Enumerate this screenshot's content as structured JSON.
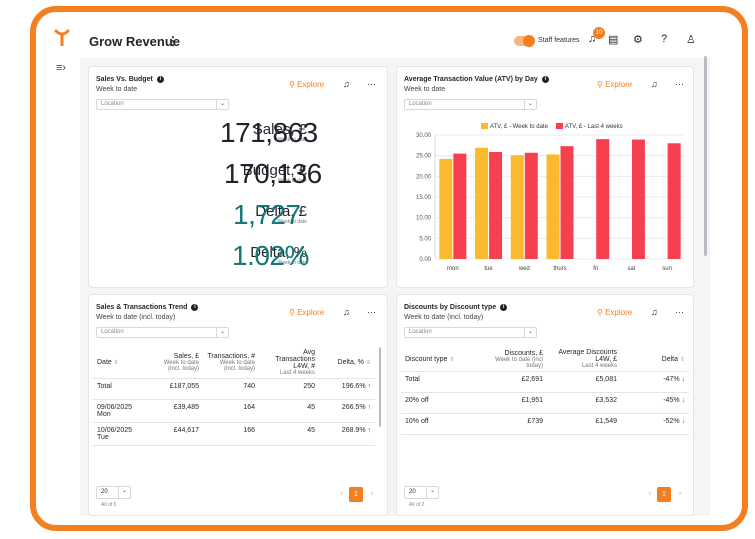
{
  "header": {
    "title": "Grow Revenue",
    "more": "⋮",
    "staff_features": "Staff features",
    "notification_count": "10",
    "help": "?"
  },
  "sales_budget": {
    "title": "Sales Vs. Budget",
    "subtitle": "Week to date",
    "explore": "Explore",
    "location": "Location",
    "kpis": [
      {
        "label": "Sales, £",
        "sub": "Week to date",
        "value": "171,863",
        "teal": false
      },
      {
        "label": "Budget, £",
        "sub": "Week to date",
        "value": "170,136",
        "teal": false
      },
      {
        "label": "Delta, £",
        "sub": "Week to date",
        "value": "1,727",
        "teal": true
      },
      {
        "label": "Delta, %",
        "sub": "Week to date",
        "value": "1.02%",
        "teal": true
      }
    ]
  },
  "atv": {
    "title": "Average Transaction Value (ATV) by Day",
    "subtitle": "Week to date",
    "explore": "Explore",
    "location": "Location"
  },
  "chart_data": {
    "type": "bar",
    "categories": [
      "mon",
      "tue",
      "wed",
      "thurs",
      "fri",
      "sat",
      "sun"
    ],
    "series": [
      {
        "name": "ATV, £ - Week to date",
        "color": "#fbb92e",
        "values": [
          24.2,
          26.9,
          25.1,
          25.3,
          null,
          null,
          null
        ]
      },
      {
        "name": "ATV, £ - Last 4 weeks",
        "color": "#f6404f",
        "values": [
          25.5,
          25.9,
          25.7,
          27.3,
          29.0,
          28.9,
          28.0
        ]
      }
    ],
    "yticks": [
      "0.00",
      "5.00",
      "10.00",
      "15.00",
      "20.00",
      "25.00",
      "30.00"
    ],
    "ylim": [
      0,
      30
    ],
    "legend": "top-center",
    "grid": true
  },
  "trend": {
    "title": "Sales & Transactions Trend",
    "subtitle": "Week to date (incl. today)",
    "explore": "Explore",
    "location": "Location",
    "headers": [
      {
        "label": "Date",
        "sub": ""
      },
      {
        "label": "Sales, £",
        "sub": "Week to date (incl. today)"
      },
      {
        "label": "Transactions, #",
        "sub": "Week to date (incl. today)"
      },
      {
        "label": "Avg Transactions L4W, #",
        "sub": "Last 4 weeks"
      },
      {
        "label": "Delta, %",
        "sub": ""
      }
    ],
    "rows": [
      {
        "date": "Total",
        "day": "",
        "sales": "£187,055",
        "trans": "740",
        "avg": "250",
        "delta": "196.6%"
      },
      {
        "date": "09/06/2025",
        "day": "Mon",
        "sales": "£39,485",
        "trans": "164",
        "avg": "45",
        "delta": "266.5%"
      },
      {
        "date": "10/06/2025",
        "day": "Tue",
        "sales": "£44,617",
        "trans": "166",
        "avg": "45",
        "delta": "268.9%"
      }
    ],
    "page_size": "20",
    "count": "All of 5",
    "page": "1"
  },
  "discounts": {
    "title": "Discounts by Discount type",
    "subtitle": "Week to date (incl. today)",
    "explore": "Explore",
    "location": "Location",
    "headers": [
      {
        "label": "Discount type",
        "sub": ""
      },
      {
        "label": "Discounts, £",
        "sub": "Week to date (incl today)"
      },
      {
        "label": "Average Discounts L4W, £",
        "sub": "Last 4 weeks"
      },
      {
        "label": "Delta",
        "sub": ""
      }
    ],
    "rows": [
      {
        "type": "Total",
        "disc": "£2,691",
        "avg": "£5,081",
        "delta": "-47%"
      },
      {
        "type": "20% off",
        "disc": "£1,951",
        "avg": "£3,532",
        "delta": "-45%"
      },
      {
        "type": "10% off",
        "disc": "£739",
        "avg": "£1,549",
        "delta": "-52%"
      }
    ],
    "page_size": "20",
    "count": "All of 2",
    "page": "1"
  }
}
